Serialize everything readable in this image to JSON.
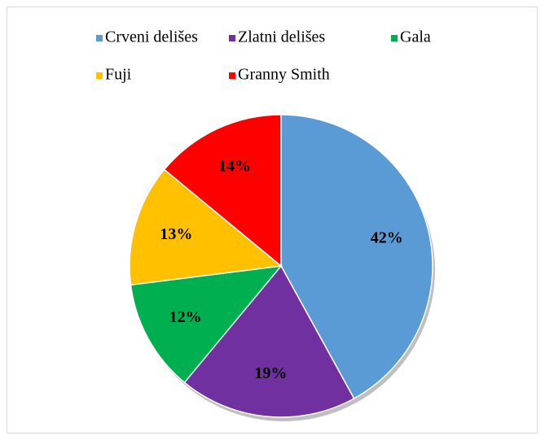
{
  "chart_data": {
    "type": "pie",
    "categories": [
      "Crveni delišes",
      "Zlatni delišes",
      "Gala",
      "Fuji",
      "Granny Smith"
    ],
    "values": [
      42,
      19,
      12,
      13,
      14
    ],
    "value_labels": [
      "42%",
      "19%",
      "12%",
      "13%",
      "14%"
    ],
    "colors": [
      "#5b9bd5",
      "#7030a0",
      "#00b050",
      "#ffc000",
      "#ff0000"
    ],
    "legend": "top"
  }
}
